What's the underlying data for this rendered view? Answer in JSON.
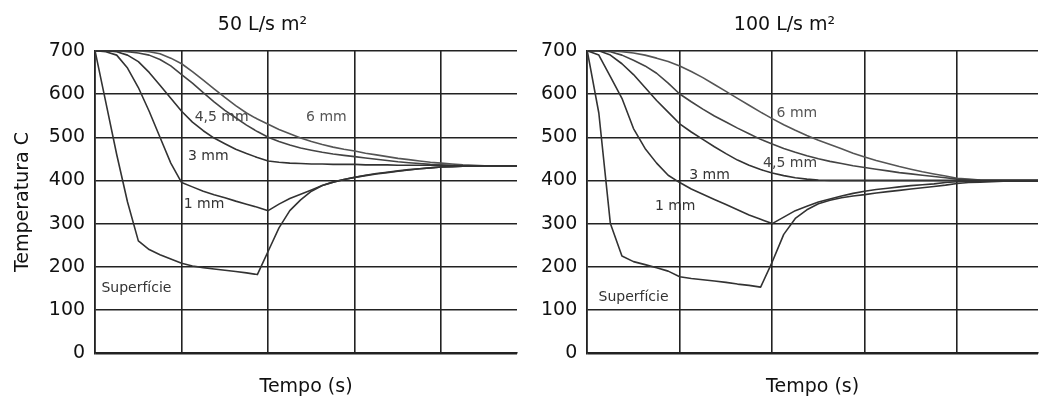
{
  "chart_data": [
    {
      "type": "line",
      "title": "50 L/s m²",
      "xlabel": "Tempo (s)",
      "ylabel": "Temperatura C",
      "categories": [
        null,
        null,
        null,
        null,
        null,
        null,
        null,
        null,
        null,
        null,
        null,
        null,
        null,
        null,
        null,
        null,
        null,
        null,
        null,
        null,
        null,
        null,
        null,
        null,
        null,
        null,
        null,
        null,
        null,
        null,
        null,
        null,
        null,
        null,
        null,
        null,
        null,
        null,
        null,
        null
      ],
      "ylim": [
        0,
        700
      ],
      "yticks": [
        0,
        100,
        200,
        300,
        400,
        500,
        600,
        700
      ],
      "grid": true,
      "tick_labels": "y",
      "marker": "none",
      "series": [
        {
          "name": "Superfície",
          "color": "#333333",
          "values": [
            700,
            580,
            460,
            350,
            260,
            240,
            228,
            218,
            208,
            202,
            198,
            195,
            192,
            189,
            186,
            182,
            236,
            290,
            330,
            355,
            375,
            388,
            396,
            402,
            407,
            412,
            416,
            419,
            422,
            425,
            427,
            429,
            431,
            432,
            433,
            433,
            433,
            433,
            433,
            433
          ]
        },
        {
          "name": "1 mm",
          "color": "#333333",
          "values": [
            700,
            698,
            690,
            660,
            615,
            560,
            500,
            440,
            395,
            385,
            375,
            367,
            360,
            352,
            345,
            338,
            330,
            345,
            358,
            368,
            378,
            388,
            396,
            402,
            407,
            411,
            415,
            418,
            421,
            424,
            427,
            429,
            431,
            432,
            433,
            433,
            433,
            433,
            433,
            433
          ]
        },
        {
          "name": "3 mm",
          "color": "#333333",
          "values": [
            700,
            700,
            698,
            690,
            675,
            650,
            620,
            590,
            560,
            535,
            515,
            498,
            485,
            472,
            462,
            453,
            445,
            442,
            440,
            439,
            438,
            438,
            437,
            437,
            437,
            436,
            436,
            436,
            435,
            435,
            435,
            435,
            434,
            434,
            434,
            434,
            434,
            434,
            434,
            434
          ]
        },
        {
          "name": "4,5 mm",
          "color": "#444444",
          "values": [
            700,
            700,
            700,
            698,
            695,
            690,
            680,
            665,
            645,
            625,
            603,
            582,
            562,
            545,
            528,
            513,
            500,
            490,
            482,
            475,
            470,
            465,
            461,
            458,
            455,
            452,
            449,
            446,
            443,
            441,
            439,
            437,
            436,
            435,
            434,
            434,
            434,
            434,
            434,
            434
          ]
        },
        {
          "name": "6 mm",
          "color": "#555555",
          "values": [
            700,
            700,
            700,
            700,
            700,
            698,
            693,
            683,
            670,
            652,
            632,
            612,
            592,
            573,
            556,
            542,
            530,
            518,
            508,
            498,
            490,
            483,
            477,
            472,
            468,
            463,
            459,
            455,
            451,
            448,
            445,
            442,
            440,
            438,
            436,
            435,
            434,
            434,
            434,
            434
          ]
        }
      ]
    },
    {
      "type": "line",
      "title": "100 L/s m²",
      "xlabel": "Tempo (s)",
      "categories": [
        null,
        null,
        null,
        null,
        null,
        null,
        null,
        null,
        null,
        null,
        null,
        null,
        null,
        null,
        null,
        null,
        null,
        null,
        null,
        null,
        null,
        null,
        null,
        null,
        null,
        null,
        null,
        null,
        null,
        null,
        null,
        null,
        null,
        null,
        null,
        null,
        null,
        null,
        null,
        null
      ],
      "ylim": [
        0,
        700
      ],
      "yticks": [
        0,
        100,
        200,
        300,
        400,
        500,
        600,
        700
      ],
      "grid": true,
      "tick_labels": "y",
      "marker": "none",
      "series": [
        {
          "name": "Superfície",
          "color": "#333333",
          "values": [
            700,
            556,
            300,
            225,
            212,
            205,
            198,
            190,
            177,
            173,
            170,
            167,
            164,
            160,
            157,
            153,
            211,
            275,
            312,
            332,
            346,
            354,
            360,
            364,
            367,
            371,
            374,
            377,
            380,
            383,
            386,
            389,
            393,
            395,
            396,
            397,
            398,
            398,
            398,
            398
          ]
        },
        {
          "name": "1 mm",
          "color": "#333333",
          "values": [
            700,
            690,
            640,
            590,
            520,
            474,
            440,
            412,
            395,
            380,
            368,
            356,
            344,
            332,
            320,
            310,
            300,
            315,
            330,
            340,
            350,
            357,
            364,
            370,
            375,
            379,
            382,
            385,
            388,
            390,
            392,
            395,
            397,
            398,
            398,
            398,
            398,
            398,
            398,
            398
          ]
        },
        {
          "name": "3 mm",
          "color": "#333333",
          "values": [
            700,
            700,
            690,
            670,
            645,
            615,
            585,
            558,
            531,
            512,
            495,
            478,
            462,
            447,
            435,
            425,
            417,
            411,
            406,
            403,
            401,
            400,
            400,
            400,
            400,
            400,
            400,
            400,
            400,
            400,
            400,
            400,
            400,
            400,
            400,
            400,
            400,
            400,
            400,
            400
          ]
        },
        {
          "name": "4,5 mm",
          "color": "#444444",
          "values": [
            700,
            700,
            698,
            690,
            678,
            665,
            648,
            625,
            600,
            582,
            565,
            549,
            535,
            521,
            508,
            495,
            484,
            474,
            465,
            457,
            450,
            444,
            439,
            434,
            430,
            426,
            422,
            418,
            415,
            412,
            409,
            406,
            403,
            401,
            400,
            400,
            400,
            400,
            400,
            400
          ]
        },
        {
          "name": "6 mm",
          "color": "#555555",
          "values": [
            700,
            700,
            700,
            698,
            695,
            690,
            683,
            675,
            665,
            652,
            638,
            622,
            606,
            590,
            574,
            558,
            543,
            529,
            516,
            504,
            493,
            483,
            473,
            463,
            454,
            446,
            439,
            432,
            426,
            420,
            415,
            410,
            405,
            403,
            401,
            400,
            400,
            400,
            400,
            400
          ]
        }
      ]
    }
  ]
}
